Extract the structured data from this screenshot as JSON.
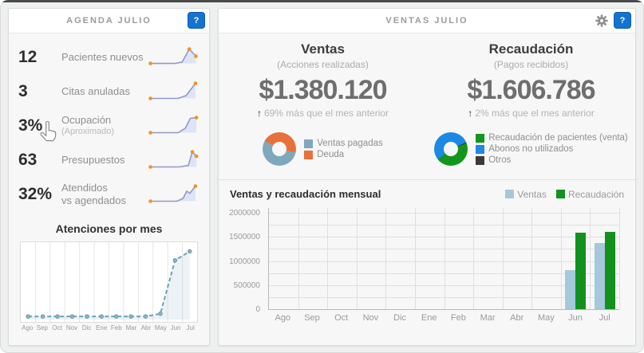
{
  "agenda": {
    "title": "AGENDA JULIO",
    "help": "?",
    "metrics": [
      {
        "value": "12",
        "label": "Pacientes nuevos",
        "spark": {
          "points": [
            [
              4,
              24
            ],
            [
              52,
              24
            ],
            [
              66,
              22
            ],
            [
              80,
              4
            ],
            [
              93,
              14
            ]
          ],
          "dots": [
            0,
            3,
            4
          ]
        }
      },
      {
        "value": "3",
        "label": "Citas anuladas",
        "spark": {
          "points": [
            [
              4,
              25
            ],
            [
              58,
              25
            ],
            [
              74,
              21
            ],
            [
              92,
              4
            ]
          ],
          "dots": [
            0,
            3
          ]
        }
      },
      {
        "value": "3%",
        "label": "Ocupación",
        "note": "(Aproximado)",
        "spark": {
          "points": [
            [
              4,
              25
            ],
            [
              58,
              25
            ],
            [
              72,
              19
            ],
            [
              82,
              5
            ],
            [
              94,
              4
            ]
          ],
          "dots": [
            0,
            4
          ]
        }
      },
      {
        "value": "63",
        "label": "Presupuestos",
        "spark": {
          "points": [
            [
              4,
              25
            ],
            [
              60,
              25
            ],
            [
              78,
              23
            ],
            [
              86,
              4
            ],
            [
              94,
              10
            ]
          ],
          "dots": [
            0,
            3,
            4
          ]
        }
      },
      {
        "value": "32%",
        "label": "Atendidos",
        "label2": "vs agendados",
        "spark": {
          "points": [
            [
              4,
              25
            ],
            [
              56,
              25
            ],
            [
              68,
              21
            ],
            [
              75,
              11
            ],
            [
              81,
              14
            ],
            [
              92,
              4
            ]
          ],
          "dots": [
            0,
            5
          ]
        }
      }
    ],
    "monthly_title": "Atenciones por mes"
  },
  "ventas_panel": {
    "title": "VENTAS JULIO",
    "help": "?",
    "ventas": {
      "heading": "Ventas",
      "subheading": "(Acciones realizadas)",
      "amount": "$1.380.120",
      "delta_arrow": "↑",
      "delta": "69% más que el mes anterior"
    },
    "recaudacion": {
      "heading": "Recaudación",
      "subheading": "(Pagos recibidos)",
      "amount": "$1.606.786",
      "delta_arrow": "↑",
      "delta": "2% más que el mes anterior"
    },
    "monthly_title": "Ventas y recaudación mensual"
  },
  "colors": {
    "accent_blue": "#1273d2",
    "spark_line": "#9597c6",
    "spark_fill": "#dde4f7",
    "spark_dot": "#f0931d",
    "mini_line": "#6ba3b6",
    "mini_dot": "#90b2c1",
    "mini_dot_stroke": "#6f9cae",
    "mini_fill": "rgba(130,170,195,0.15)"
  },
  "chart_data": [
    {
      "type": "line",
      "title": "Atenciones por mes",
      "categories": [
        "Ago",
        "Sep",
        "Oct",
        "Nov",
        "Dic",
        "Ene",
        "Feb",
        "Mar",
        "Abr",
        "May",
        "Jun",
        "Jul"
      ],
      "values": [
        1,
        1,
        1,
        1,
        1,
        1,
        1,
        1,
        1,
        5,
        83,
        96
      ],
      "xlabel": "",
      "ylabel": "",
      "layout": {
        "ylim": [
          0,
          100
        ],
        "ylim_note": "no y-axis shown, values estimated relative 0-100",
        "grid": "vertical",
        "line_style": "dashed",
        "markers": true
      }
    },
    {
      "type": "pie",
      "title": "Ventas (desglose)",
      "labels": [
        "Ventas pagadas",
        "Deuda"
      ],
      "values": [
        55,
        45
      ],
      "colors": [
        "#7fa8bc",
        "#e8713b"
      ],
      "layout": {
        "donut": true,
        "start_deg": 102,
        "legend_position": "right"
      }
    },
    {
      "type": "pie",
      "title": "Recaudación (desglose)",
      "labels": [
        "Recaudación de pacientes (venta)",
        "Abonos no utilizados",
        "Otros"
      ],
      "values": [
        45,
        54,
        1
      ],
      "colors": [
        "#12961c",
        "#1e88e5",
        "#3a3a3a"
      ],
      "layout": {
        "donut": true,
        "start_deg": 70,
        "legend_position": "right"
      }
    },
    {
      "type": "bar",
      "title": "Ventas y recaudación mensual",
      "categories": [
        "Ago",
        "Sep",
        "Oct",
        "Nov",
        "Dic",
        "Ene",
        "Feb",
        "Mar",
        "Abr",
        "May",
        "Jun",
        "Jul"
      ],
      "series": [
        {
          "name": "Ventas",
          "color": "#a5c8da",
          "values": [
            0,
            0,
            0,
            0,
            0,
            0,
            0,
            0,
            0,
            0,
            810000,
            1380120
          ]
        },
        {
          "name": "Recaudación",
          "color": "#12911d",
          "values": [
            0,
            0,
            0,
            0,
            0,
            0,
            0,
            0,
            0,
            0,
            1580000,
            1606786
          ]
        }
      ],
      "yticks": [
        0,
        500000,
        1000000,
        1500000,
        2000000
      ],
      "layout": {
        "ylim": [
          0,
          2000000
        ],
        "render_max": 2100000,
        "grid": "both",
        "minor_step": 250000,
        "legend_position": "top-right"
      }
    }
  ]
}
